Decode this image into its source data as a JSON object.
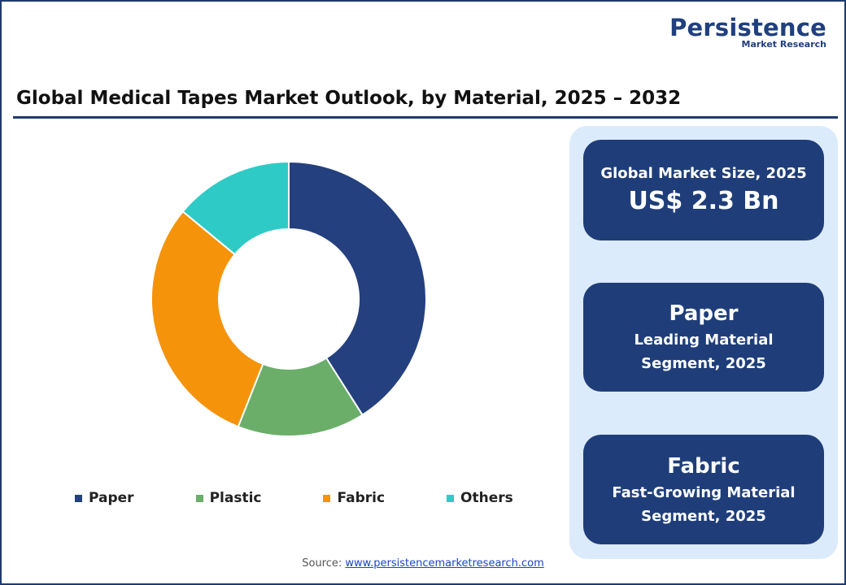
{
  "brand": {
    "name": "Persistence",
    "tagline": "Market Research"
  },
  "title": "Global Medical Tapes Market Outlook, by Material, 2025 – 2032",
  "chart_data": {
    "type": "pie",
    "donut": true,
    "title": "",
    "categories": [
      "Paper",
      "Plastic",
      "Fabric",
      "Others"
    ],
    "values": [
      41.0,
      15.0,
      30.0,
      14.0
    ],
    "colors": [
      "#24407e",
      "#6aae69",
      "#f5930b",
      "#2ecbc6"
    ],
    "legend_position": "bottom"
  },
  "legend": [
    {
      "label": "Paper",
      "color": "#24407e"
    },
    {
      "label": "Plastic",
      "color": "#6aae69"
    },
    {
      "label": "Fabric",
      "color": "#f5930b"
    },
    {
      "label": "Others",
      "color": "#2ecbc6"
    }
  ],
  "cards": {
    "market_size": {
      "label": "Global Market Size, 2025",
      "value": "US$ 2.3 Bn"
    },
    "leading": {
      "title": "Paper",
      "line1": "Leading Material",
      "line2": "Segment, 2025"
    },
    "fastest": {
      "title": "Fabric",
      "line1": "Fast-Growing Material",
      "line2": "Segment, 2025"
    }
  },
  "source": {
    "prefix": "Source: ",
    "link": "www.persistencemarketresearch.com"
  }
}
